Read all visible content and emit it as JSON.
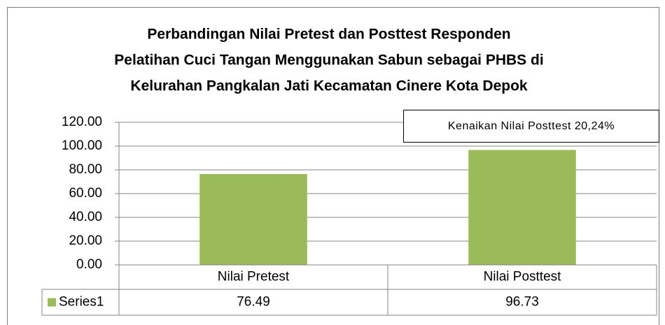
{
  "chart_data": {
    "type": "bar",
    "title": [
      "Perbandingan Nilai Pretest dan Posttest Responden",
      "Pelatihan Cuci Tangan Menggunakan Sabun sebagai PHBS di",
      "Kelurahan Pangkalan Jati Kecamatan Cinere Kota Depok"
    ],
    "annotation": "Kenaikan Nilai Posttest 20,24%",
    "categories": [
      "Nilai Pretest",
      "Nilai Posttest"
    ],
    "series": [
      {
        "name": "Series1",
        "color": "#9bbb59",
        "values": [
          76.49,
          96.73
        ]
      }
    ],
    "ylim": [
      0,
      120
    ],
    "yticks": [
      {
        "value": 0,
        "label": "0.00"
      },
      {
        "value": 20,
        "label": "20.00"
      },
      {
        "value": 40,
        "label": "40.00"
      },
      {
        "value": 60,
        "label": "60.00"
      },
      {
        "value": 80,
        "label": "80.00"
      },
      {
        "value": 100,
        "label": "100.00"
      },
      {
        "value": 120,
        "label": "120.00"
      }
    ],
    "grid": true,
    "data_table": true
  }
}
